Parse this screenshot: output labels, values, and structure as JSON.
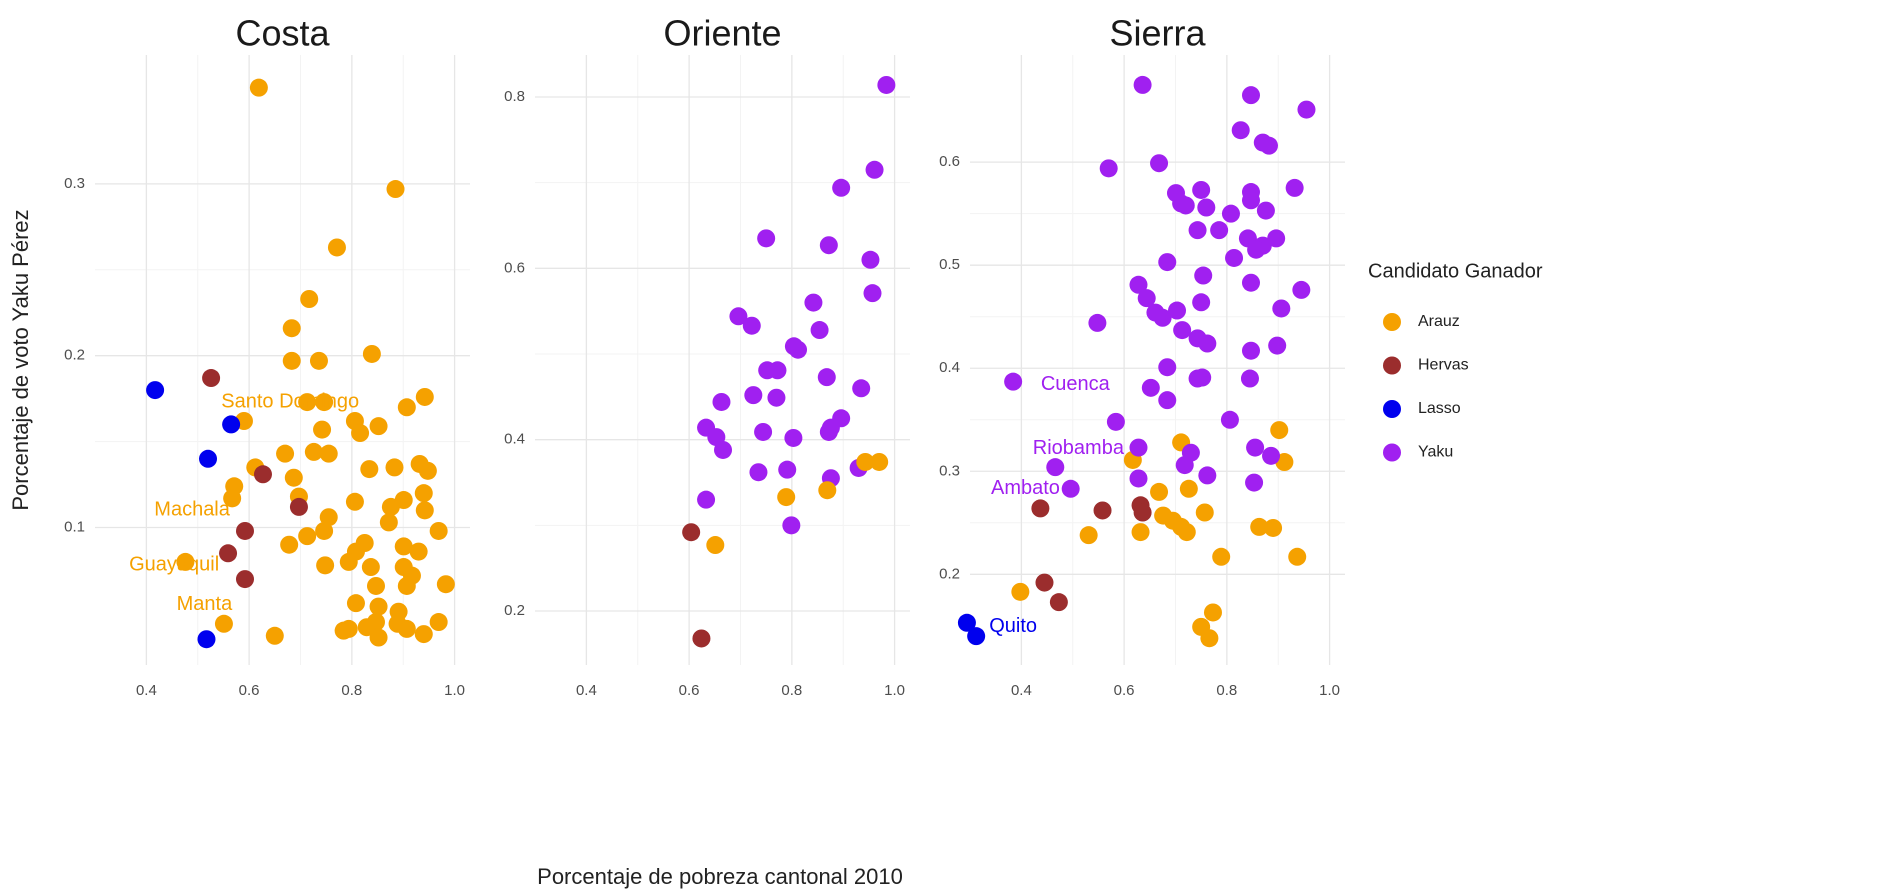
{
  "chart_data": [
    {
      "type": "scatter",
      "title": "Costa",
      "ylabel": "Porcentaje de voto Yaku Pérez",
      "xlim": [
        0.3,
        1.03
      ],
      "ylim": [
        0.02,
        0.375
      ],
      "xticks": [
        0.4,
        0.6,
        0.8,
        {
          "value": 1,
          "label": "1.0"
        }
      ],
      "yticks": [
        0.1,
        0.2,
        0.3
      ],
      "grid": true,
      "series": [
        {
          "name": "Arauz",
          "color": "#f5a100",
          "x": [
            0.619,
            0.885,
            0.771,
            0.717,
            0.683,
            0.683,
            0.736,
            0.839,
            0.713,
            0.746,
            0.907,
            0.942,
            0.742,
            0.806,
            0.816,
            0.852,
            0.59,
            0.67,
            0.726,
            0.755,
            0.612,
            0.834,
            0.883,
            0.932,
            0.948,
            0.571,
            0.567,
            0.687,
            0.697,
            0.806,
            0.876,
            0.901,
            0.94,
            0.942,
            0.755,
            0.746,
            0.872,
            0.969,
            0.713,
            0.678,
            0.808,
            0.825,
            0.901,
            0.93,
            0.794,
            0.837,
            0.901,
            0.917,
            0.748,
            0.847,
            0.907,
            0.983,
            0.808,
            0.891,
            0.852,
            0.847,
            0.889,
            0.969,
            0.784,
            0.794,
            0.829,
            0.852,
            0.907,
            0.94,
            0.65,
            0.551,
            0.476
          ],
          "y": [
            0.356,
            0.297,
            0.263,
            0.233,
            0.216,
            0.197,
            0.197,
            0.201,
            0.173,
            0.173,
            0.17,
            0.176,
            0.157,
            0.162,
            0.155,
            0.159,
            0.162,
            0.143,
            0.144,
            0.143,
            0.135,
            0.134,
            0.135,
            0.137,
            0.133,
            0.124,
            0.117,
            0.129,
            0.118,
            0.115,
            0.112,
            0.116,
            0.12,
            0.11,
            0.106,
            0.098,
            0.103,
            0.098,
            0.095,
            0.09,
            0.086,
            0.091,
            0.089,
            0.086,
            0.08,
            0.077,
            0.077,
            0.072,
            0.078,
            0.066,
            0.066,
            0.067,
            0.056,
            0.051,
            0.054,
            0.045,
            0.044,
            0.045,
            0.04,
            0.041,
            0.042,
            0.036,
            0.041,
            0.038,
            0.037,
            0.044,
            0.08
          ]
        },
        {
          "name": "Hervas",
          "color": "#9b2d2d",
          "x": [
            0.526,
            0.627,
            0.697,
            0.592,
            0.559,
            0.592
          ],
          "y": [
            0.187,
            0.131,
            0.112,
            0.098,
            0.085,
            0.07
          ]
        },
        {
          "name": "Lasso",
          "color": "#0000ee",
          "x": [
            0.417,
            0.565,
            0.52,
            0.517
          ],
          "y": [
            0.18,
            0.16,
            0.14,
            0.035
          ]
        }
      ],
      "annotations": [
        {
          "text": "Santo Domingo",
          "x": 0.68,
          "y": 0.173,
          "color": "#f5a100"
        },
        {
          "text": "Machala",
          "x": 0.489,
          "y": 0.11,
          "color": "#f5a100"
        },
        {
          "text": "Guayaquil",
          "x": 0.454,
          "y": 0.078,
          "color": "#f5a100"
        },
        {
          "text": "Manta",
          "x": 0.513,
          "y": 0.055,
          "color": "#f5a100"
        }
      ]
    },
    {
      "type": "scatter",
      "title": "Oriente",
      "xlabel": "Porcentaje de pobreza cantonal 2010",
      "xlim": [
        0.3,
        1.03
      ],
      "ylim": [
        0.137,
        0.849
      ],
      "xticks": [
        0.4,
        0.6,
        0.8,
        {
          "value": 1,
          "label": "1.0"
        }
      ],
      "yticks": [
        0.2,
        0.4,
        0.6,
        0.8
      ],
      "grid": true,
      "series": [
        {
          "name": "Yaku",
          "color": "#a020f0",
          "x": [
            0.984,
            0.961,
            0.896,
            0.75,
            0.872,
            0.953,
            0.957,
            0.842,
            0.696,
            0.722,
            0.854,
            0.804,
            0.812,
            0.752,
            0.772,
            0.868,
            0.725,
            0.77,
            0.663,
            0.935,
            0.896,
            0.744,
            0.872,
            0.803,
            0.876,
            0.633,
            0.653,
            0.666,
            0.735,
            0.791,
            0.876,
            0.93,
            0.633,
            0.799
          ],
          "y": [
            0.814,
            0.715,
            0.694,
            0.635,
            0.627,
            0.61,
            0.571,
            0.56,
            0.544,
            0.533,
            0.528,
            0.509,
            0.505,
            0.481,
            0.481,
            0.473,
            0.452,
            0.449,
            0.444,
            0.46,
            0.425,
            0.409,
            0.409,
            0.402,
            0.414,
            0.414,
            0.403,
            0.388,
            0.362,
            0.365,
            0.355,
            0.367,
            0.33,
            0.3
          ]
        },
        {
          "name": "Arauz",
          "color": "#f5a100",
          "x": [
            0.97,
            0.943,
            0.789,
            0.869,
            0.651
          ],
          "y": [
            0.374,
            0.374,
            0.333,
            0.341,
            0.277
          ]
        },
        {
          "name": "Hervas",
          "color": "#9b2d2d",
          "x": [
            0.604,
            0.624
          ],
          "y": [
            0.292,
            0.168
          ]
        }
      ]
    },
    {
      "type": "scatter",
      "title": "Sierra",
      "legend_title": "Candidato Ganador",
      "xlim": [
        0.3,
        1.03
      ],
      "ylim": [
        0.112,
        0.704
      ],
      "xticks": [
        0.4,
        0.6,
        0.8,
        {
          "value": 1,
          "label": "1.0"
        }
      ],
      "yticks": [
        0.2,
        0.3,
        0.4,
        0.5,
        0.6
      ],
      "grid": true,
      "series": [
        {
          "name": "Arauz",
          "color": "#f5a100",
          "x": [
            0.902,
            0.711,
            0.617,
            0.912,
            0.668,
            0.726,
            0.757,
            0.676,
            0.695,
            0.711,
            0.722,
            0.632,
            0.531,
            0.863,
            0.89,
            0.789,
            0.937,
            0.398,
            0.773,
            0.75,
            0.766
          ],
          "y": [
            0.34,
            0.328,
            0.311,
            0.309,
            0.28,
            0.283,
            0.26,
            0.257,
            0.252,
            0.246,
            0.241,
            0.241,
            0.238,
            0.246,
            0.245,
            0.217,
            0.217,
            0.183,
            0.163,
            0.149,
            0.138
          ]
        },
        {
          "name": "Hervas",
          "color": "#9b2d2d",
          "x": [
            0.437,
            0.558,
            0.632,
            0.636,
            0.445,
            0.473
          ],
          "y": [
            0.264,
            0.262,
            0.267,
            0.26,
            0.192,
            0.173
          ]
        },
        {
          "name": "Lasso",
          "color": "#0000ee",
          "x": [
            0.294,
            0.312
          ],
          "y": [
            0.153,
            0.14
          ]
        },
        {
          "name": "Yaku",
          "color": "#a020f0",
          "x": [
            0.636,
            0.955,
            0.847,
            0.827,
            0.87,
            0.882,
            0.57,
            0.668,
            0.932,
            0.75,
            0.701,
            0.847,
            0.711,
            0.76,
            0.808,
            0.847,
            0.876,
            0.896,
            0.841,
            0.785,
            0.743,
            0.72,
            0.87,
            0.857,
            0.814,
            0.684,
            0.754,
            0.945,
            0.847,
            0.906,
            0.628,
            0.644,
            0.661,
            0.675,
            0.703,
            0.75,
            0.548,
            0.713,
            0.743,
            0.762,
            0.847,
            0.898,
            0.684,
            0.652,
            0.743,
            0.752,
            0.845,
            0.684,
            0.384,
            0.584,
            0.806,
            0.628,
            0.73,
            0.855,
            0.886,
            0.718,
            0.762,
            0.628,
            0.853,
            0.466,
            0.496
          ],
          "y": [
            0.675,
            0.651,
            0.665,
            0.631,
            0.619,
            0.616,
            0.594,
            0.599,
            0.575,
            0.573,
            0.57,
            0.571,
            0.56,
            0.556,
            0.55,
            0.563,
            0.553,
            0.526,
            0.526,
            0.534,
            0.534,
            0.558,
            0.519,
            0.515,
            0.507,
            0.503,
            0.49,
            0.476,
            0.483,
            0.458,
            0.481,
            0.468,
            0.454,
            0.449,
            0.456,
            0.464,
            0.444,
            0.437,
            0.429,
            0.424,
            0.417,
            0.422,
            0.401,
            0.381,
            0.39,
            0.391,
            0.39,
            0.369,
            0.387,
            0.348,
            0.35,
            0.323,
            0.318,
            0.323,
            0.315,
            0.306,
            0.296,
            0.293,
            0.289,
            0.304,
            0.283
          ]
        }
      ],
      "annotations": [
        {
          "text": "Cuenca",
          "x": 0.505,
          "y": 0.384,
          "color": "#a020f0"
        },
        {
          "text": "Riobamba",
          "x": 0.511,
          "y": 0.322,
          "color": "#a020f0"
        },
        {
          "text": "Ambato",
          "x": 0.408,
          "y": 0.283,
          "color": "#a020f0"
        },
        {
          "text": "Quito",
          "x": 0.384,
          "y": 0.149,
          "color": "#0000ee"
        }
      ]
    }
  ]
}
